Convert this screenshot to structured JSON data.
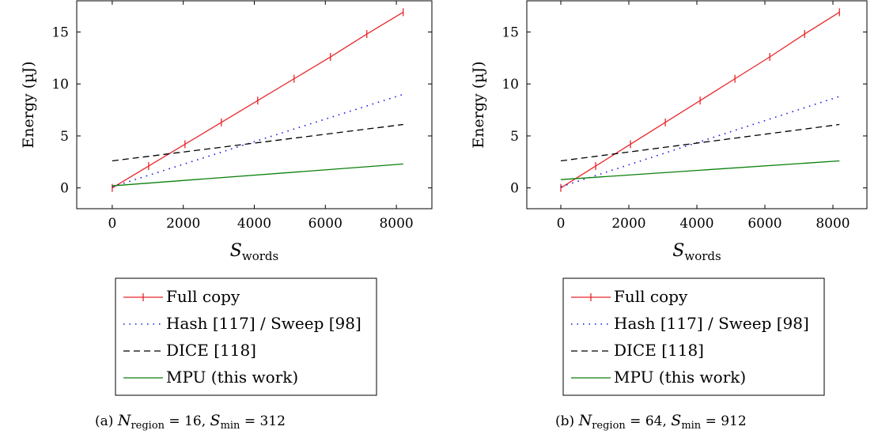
{
  "chart_data": [
    {
      "type": "line",
      "ylabel": "Energy (µJ)",
      "xlabel": {
        "main": "S",
        "sub": "words"
      },
      "xlim": [
        -1000,
        9000
      ],
      "ylim": [
        -2,
        18
      ],
      "xticks": [
        0,
        2000,
        4000,
        6000,
        8000
      ],
      "yticks": [
        0,
        5,
        10,
        15
      ],
      "grid": false,
      "legend": "below",
      "caption": {
        "label": "(a)",
        "n_main": "N",
        "n_sub": "region",
        "n_val": "= 16,",
        "s_main": "S",
        "s_sub": "min",
        "s_val": "= 312"
      },
      "series": [
        {
          "name": "Full copy",
          "color": "#e8262a",
          "style": "solid-marks",
          "x": [
            0,
            1024,
            2048,
            3072,
            4096,
            5120,
            6144,
            7168,
            8192
          ],
          "y": [
            0.0,
            2.1,
            4.2,
            6.3,
            8.4,
            10.5,
            12.6,
            14.8,
            16.9
          ]
        },
        {
          "name": "Hash [117] / Sweep [98]",
          "color": "#1515e0",
          "style": "dotted",
          "x": [
            0,
            8192
          ],
          "y": [
            0.1,
            9.0
          ]
        },
        {
          "name": "DICE [118]",
          "color": "#000000",
          "style": "dashed",
          "x": [
            0,
            8192
          ],
          "y": [
            2.6,
            6.1
          ]
        },
        {
          "name": "MPU (this work)",
          "color": "#0a7f0a",
          "style": "solid",
          "x": [
            0,
            8192
          ],
          "y": [
            0.2,
            2.3
          ]
        }
      ]
    },
    {
      "type": "line",
      "ylabel": "Energy (µJ)",
      "xlabel": {
        "main": "S",
        "sub": "words"
      },
      "xlim": [
        -1000,
        9000
      ],
      "ylim": [
        -2,
        18
      ],
      "xticks": [
        0,
        2000,
        4000,
        6000,
        8000
      ],
      "yticks": [
        0,
        5,
        10,
        15
      ],
      "grid": false,
      "legend": "below",
      "caption": {
        "label": "(b)",
        "n_main": "N",
        "n_sub": "region",
        "n_val": "= 64,",
        "s_main": "S",
        "s_sub": "min",
        "s_val": "= 912"
      },
      "series": [
        {
          "name": "Full copy",
          "color": "#e8262a",
          "style": "solid-marks",
          "x": [
            0,
            1024,
            2048,
            3072,
            4096,
            5120,
            6144,
            7168,
            8192
          ],
          "y": [
            0.0,
            2.1,
            4.2,
            6.3,
            8.4,
            10.5,
            12.6,
            14.8,
            16.9
          ]
        },
        {
          "name": "Hash [117] / Sweep [98]",
          "color": "#1515e0",
          "style": "dotted",
          "x": [
            0,
            8192
          ],
          "y": [
            0.1,
            8.8
          ]
        },
        {
          "name": "DICE [118]",
          "color": "#000000",
          "style": "dashed",
          "x": [
            0,
            8192
          ],
          "y": [
            2.6,
            6.1
          ]
        },
        {
          "name": "MPU (this work)",
          "color": "#0a7f0a",
          "style": "solid",
          "x": [
            0,
            8192
          ],
          "y": [
            0.8,
            2.6
          ]
        }
      ]
    }
  ]
}
